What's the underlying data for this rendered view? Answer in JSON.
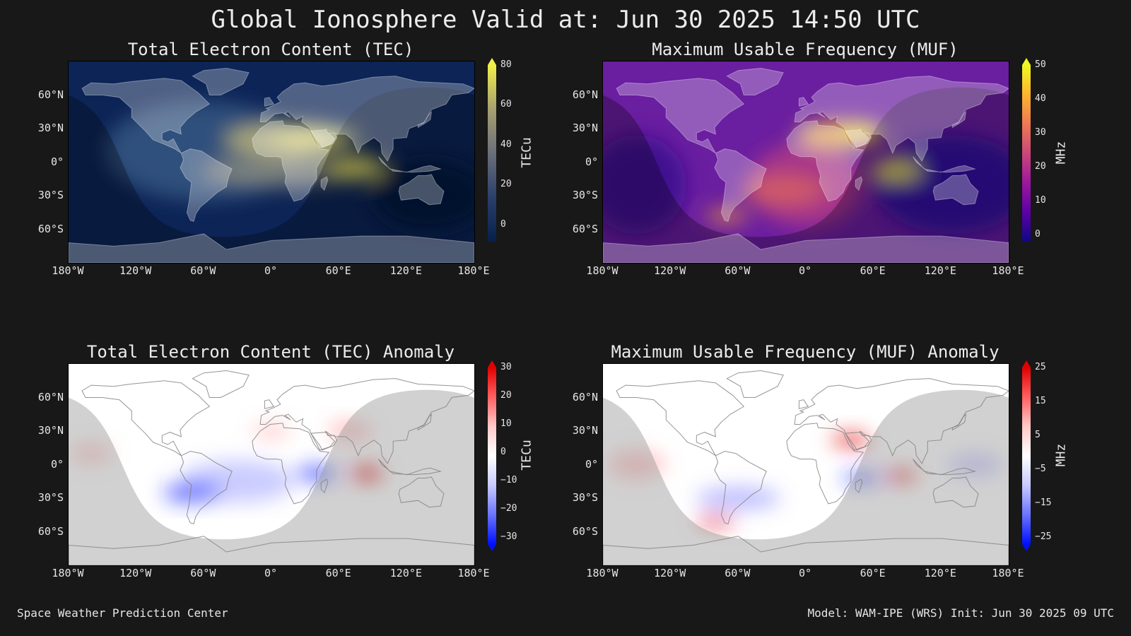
{
  "title": "Global Ionosphere Valid at: Jun 30 2025 14:50 UTC",
  "footer": {
    "left": "Space Weather Prediction Center",
    "right": "Model: WAM-IPE (WRS) Init: Jun 30 2025 09 UTC"
  },
  "axis": {
    "lon_ticks": [
      "180°W",
      "120°W",
      "60°W",
      "0°",
      "60°E",
      "120°E",
      "180°E"
    ],
    "lat_ticks": [
      "60°N",
      "30°N",
      "0°",
      "30°S",
      "60°S"
    ]
  },
  "colors": {
    "background": "#181818",
    "tec_low": "#0b1f4a",
    "tec_high": "#f2ef4a",
    "muf_low": "#1b0f6b",
    "muf_high": "#fbff3a",
    "anomaly_negative": "#1a2bff",
    "anomaly_positive": "#e00000"
  },
  "chart_data": [
    {
      "type": "heatmap",
      "title": "Total Electron Content (TEC)",
      "colorbar_label": "TECu",
      "colorbar_ticks": [
        "80",
        "60",
        "40",
        "20",
        "0"
      ],
      "colorbar_range": [
        0,
        85
      ],
      "colormap": "cividis",
      "xlabel": "",
      "ylabel": "",
      "xlim": [
        -180,
        180
      ],
      "ylim": [
        -90,
        90
      ],
      "grid": false
    },
    {
      "type": "heatmap",
      "title": "Maximum Usable Frequency (MUF)",
      "colorbar_label": "MHz",
      "colorbar_ticks": [
        "50",
        "40",
        "30",
        "20",
        "10",
        "0"
      ],
      "colorbar_range": [
        0,
        53
      ],
      "colormap": "plasma",
      "xlabel": "",
      "ylabel": "",
      "xlim": [
        -180,
        180
      ],
      "ylim": [
        -90,
        90
      ],
      "grid": false
    },
    {
      "type": "heatmap",
      "title": "Total Electron Content (TEC) Anomaly",
      "colorbar_label": "TECu",
      "colorbar_ticks": [
        "30",
        "20",
        "10",
        "0",
        "−10",
        "−20",
        "−30"
      ],
      "colorbar_range": [
        -33,
        33
      ],
      "colormap": "bwr",
      "xlabel": "",
      "ylabel": "",
      "xlim": [
        -180,
        180
      ],
      "ylim": [
        -90,
        90
      ],
      "grid": false
    },
    {
      "type": "heatmap",
      "title": "Maximum Usable Frequency (MUF) Anomaly",
      "colorbar_label": "MHz",
      "colorbar_ticks": [
        "25",
        "15",
        "5",
        "−5",
        "−15",
        "−25"
      ],
      "colorbar_range": [
        -27,
        27
      ],
      "colormap": "bwr",
      "xlabel": "",
      "ylabel": "",
      "xlim": [
        -180,
        180
      ],
      "ylim": [
        -90,
        90
      ],
      "grid": false
    }
  ]
}
